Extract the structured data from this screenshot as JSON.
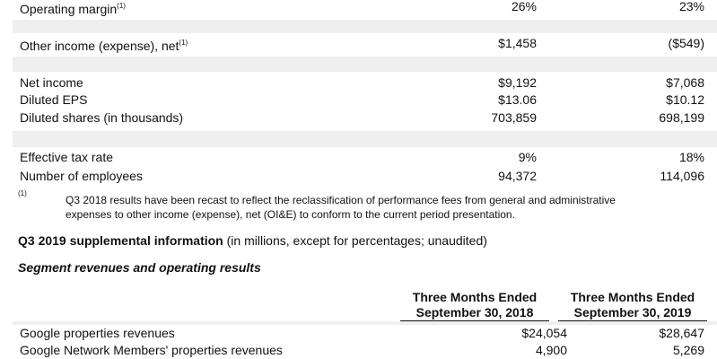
{
  "table1": {
    "rows": [
      {
        "label": "Operating margin",
        "note": "(1)",
        "values": [
          "26%",
          "23%"
        ]
      },
      {
        "label": "Other income (expense), net",
        "note": "(1)",
        "values": [
          "$1,458",
          "($549)"
        ]
      },
      {
        "label": "Net income",
        "values": [
          "$9,192",
          "$7,068"
        ]
      },
      {
        "label": "Diluted EPS",
        "values": [
          "$13.06",
          "$10.12"
        ]
      },
      {
        "label": "Diluted shares (in thousands)",
        "values": [
          "703,859",
          "698,199"
        ]
      },
      {
        "label": "Effective tax rate",
        "values": [
          "9%",
          "18%"
        ]
      },
      {
        "label": "Number of employees",
        "values": [
          "94,372",
          "114,096"
        ]
      }
    ]
  },
  "footnote": {
    "marker": "(1)",
    "lines": [
      "Q3 2018 results have been recast to reflect the reclassification of performance fees from general and administrative",
      "expenses to other income (expense), net (OI&E) to conform to the current period presentation."
    ]
  },
  "supplemental": {
    "title": "Q3 2019 supplemental information",
    "subtitle": "(in millions, except for percentages; unaudited)"
  },
  "segment": {
    "title": "Segment revenues and operating results",
    "headers": [
      [
        "Three Months Ended",
        "September 30, 2018"
      ],
      [
        "Three Months Ended",
        "September 30, 2019"
      ]
    ],
    "rows": [
      {
        "label": "Google properties revenues",
        "values": [
          "$24,054",
          "$28,647"
        ]
      },
      {
        "label": "Google Network Members' properties revenues",
        "values": [
          "4,900",
          "5,269"
        ]
      }
    ]
  }
}
